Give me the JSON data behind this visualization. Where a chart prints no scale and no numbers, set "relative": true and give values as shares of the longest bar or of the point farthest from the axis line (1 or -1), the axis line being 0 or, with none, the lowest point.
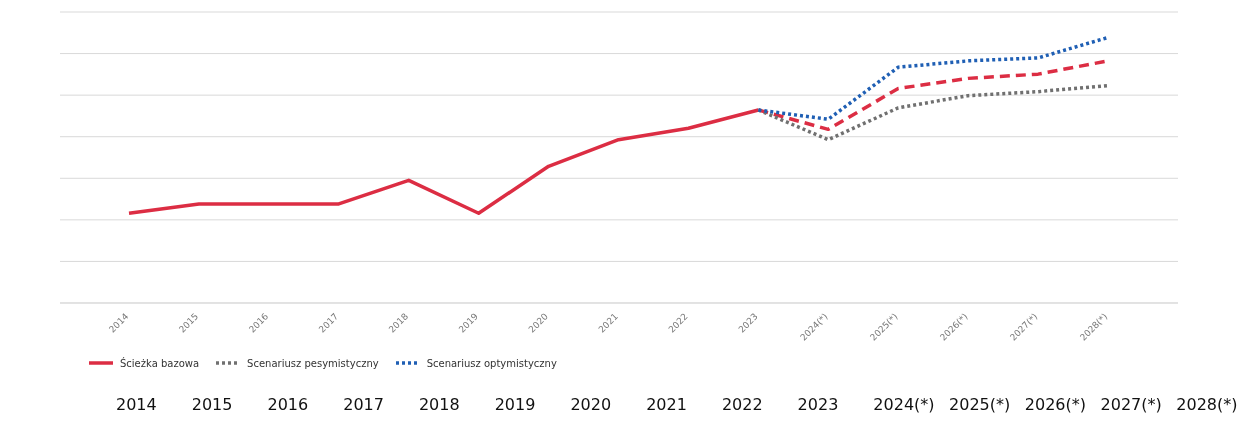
{
  "chart_data": {
    "type": "line",
    "relative": true,
    "grid": "y",
    "legend": "bottom left",
    "categories": [
      "2014",
      "2015",
      "2016",
      "2017",
      "2018",
      "2019",
      "2020",
      "2021",
      "2022",
      "2023",
      "2024(*)",
      "2025(*)",
      "2026(*)",
      "2027(*)",
      "2028(*)"
    ],
    "series": [
      {
        "name": "Ścieżka bazowa",
        "color": "#dc2d43",
        "line_style": "solid",
        "values": [
          0.338,
          0.373,
          0.373,
          0.373,
          0.462,
          0.338,
          0.515,
          0.615,
          0.658,
          0.727,
          null,
          null,
          null,
          null,
          null
        ]
      },
      {
        "color": "#dc2d43",
        "line_style": "dashed",
        "values": [
          null,
          null,
          null,
          null,
          null,
          null,
          null,
          null,
          null,
          0.727,
          0.654,
          0.808,
          0.846,
          0.862,
          0.912
        ]
      },
      {
        "name": "Scenariusz pesymistyczny",
        "color": "#707070",
        "line_style": "dotted",
        "values": [
          null,
          null,
          null,
          null,
          null,
          null,
          null,
          null,
          null,
          0.727,
          0.615,
          0.735,
          0.781,
          0.796,
          0.819
        ]
      },
      {
        "name": "Scenariusz optymistyczny",
        "color": "#1f5fb4",
        "line_style": "dotted",
        "values": [
          null,
          null,
          null,
          null,
          null,
          null,
          null,
          null,
          null,
          0.727,
          0.692,
          0.888,
          0.912,
          0.923,
          1.0
        ]
      }
    ],
    "annotations": [
      "2014",
      "2015",
      "2016",
      "2017",
      "2018",
      "2019",
      "2020",
      "2021",
      "2022",
      "2023",
      "2024(*)",
      "2025(*)",
      "2026(*)",
      "2027(*)",
      "2028(*)"
    ]
  }
}
